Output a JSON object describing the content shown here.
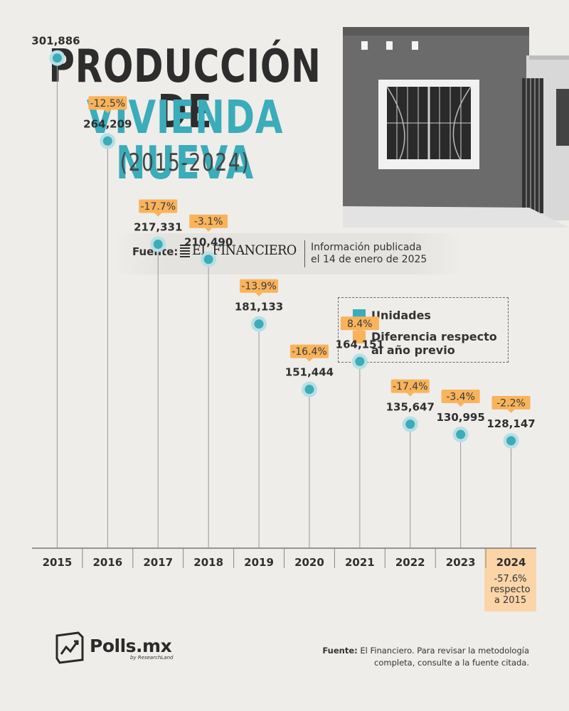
{
  "header": {
    "title_line1": "PRODUCCIÓN DE",
    "title_line2": "VIVIENDA NUEVA",
    "period": "(2015-2024)"
  },
  "source": {
    "label": "Fuente:",
    "publisher": "EL FINANCIERO",
    "published_line1": "Información publicada",
    "published_line2": "el 14 de enero de 2025"
  },
  "legend": {
    "units": "Unidades",
    "diff_line1": "Diferencia respecto",
    "diff_line2": "al año previo",
    "units_color": "#3aacba",
    "diff_color": "#f9b35a"
  },
  "chart_data": {
    "type": "scatter",
    "x": [
      "2015",
      "2016",
      "2017",
      "2018",
      "2019",
      "2020",
      "2021",
      "2022",
      "2023",
      "2024"
    ],
    "values": [
      301886,
      264209,
      217331,
      210490,
      181133,
      151444,
      164151,
      135647,
      130995,
      128147
    ],
    "value_labels": [
      "301,886",
      "264,209",
      "217,331",
      "210,490",
      "181,133",
      "151,444",
      "164,151",
      "135,647",
      "130,995",
      "128,147"
    ],
    "pct_change": [
      "",
      "-12.5%",
      "-17.7%",
      "-3.1%",
      "-13.9%",
      "-16.4%",
      "8.4%",
      "-17.4%",
      "-3.4%",
      "-2.2%"
    ],
    "ylim": [
      0,
      320000
    ]
  },
  "note_2024": {
    "line1": "-57.6%",
    "line2": "respecto",
    "line3": "a 2015"
  },
  "footer": {
    "brand": "Polls.mx",
    "brand_sub": "by ResearchLand",
    "note_bold": "Fuente:",
    "note_text": " El Financiero. Para revisar la metodología completa, consulte a la fuente citada."
  }
}
